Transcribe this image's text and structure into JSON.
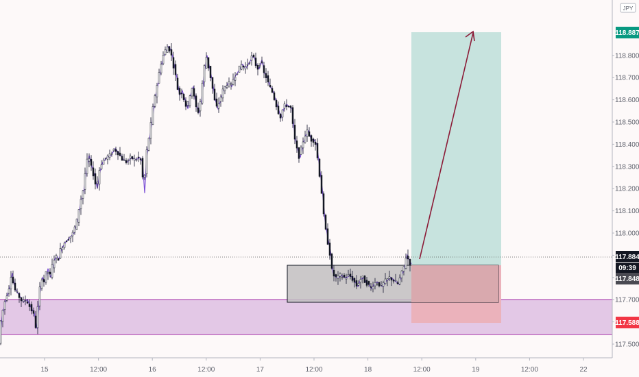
{
  "chart_data": {
    "type": "candlestick",
    "symbol_badge": "JPY",
    "y_axis": {
      "ylim": [
        117.43,
        119.38
      ],
      "ticks": [
        "117.500",
        "117.600",
        "117.700",
        "117.800",
        "117.900",
        "118.000",
        "118.100",
        "118.200",
        "118.300",
        "118.400",
        "118.500",
        "118.600",
        "118.700",
        "118.800"
      ]
    },
    "x_axis": {
      "ticks": [
        "15",
        "12:00",
        "16",
        "12:00",
        "17",
        "12:00",
        "18",
        "12:00",
        "19",
        "12:00",
        "22"
      ]
    },
    "price_tags": {
      "take_profit": "118.887",
      "current_price": "117.884",
      "countdown": "09:39",
      "entry": "117.848",
      "stop_loss": "117.588"
    },
    "colors": {
      "candle_up": "#ffffff",
      "candle_down": "#131722",
      "wick": "#2a2a40",
      "path_line": "#7b4fd6",
      "support_zone": "#e3c8e6",
      "support_border": "#a32ca6",
      "profit_zone": "#c7e3de",
      "loss_zone": "#ebb2bb",
      "consolidation_box": "#bdbdbd",
      "arrow": "#8b1a36",
      "tp_tag": "#089981",
      "sl_tag": "#f23645",
      "dark_tag": "#131722",
      "entry_tag": "#4a4a52"
    },
    "series_path": [
      [
        0,
        117.52
      ],
      [
        3,
        117.62
      ],
      [
        9,
        117.7
      ],
      [
        15,
        117.76
      ],
      [
        18,
        117.82
      ],
      [
        22,
        117.75
      ],
      [
        28,
        117.72
      ],
      [
        34,
        117.69
      ],
      [
        40,
        117.7
      ],
      [
        46,
        117.66
      ],
      [
        50,
        117.64
      ],
      [
        54,
        117.57
      ],
      [
        58,
        117.72
      ],
      [
        62,
        117.8
      ],
      [
        66,
        117.78
      ],
      [
        70,
        117.84
      ],
      [
        74,
        117.8
      ],
      [
        78,
        117.86
      ],
      [
        82,
        117.9
      ],
      [
        86,
        117.88
      ],
      [
        90,
        117.93
      ],
      [
        96,
        117.96
      ],
      [
        102,
        117.98
      ],
      [
        108,
        118.0
      ],
      [
        114,
        118.06
      ],
      [
        118,
        118.14
      ],
      [
        122,
        118.18
      ],
      [
        126,
        118.28
      ],
      [
        130,
        118.35
      ],
      [
        134,
        118.3
      ],
      [
        138,
        118.26
      ],
      [
        142,
        118.2
      ],
      [
        146,
        118.28
      ],
      [
        150,
        118.32
      ],
      [
        156,
        118.34
      ],
      [
        162,
        118.35
      ],
      [
        168,
        118.38
      ],
      [
        174,
        118.36
      ],
      [
        180,
        118.33
      ],
      [
        186,
        118.32
      ],
      [
        192,
        118.34
      ],
      [
        198,
        118.33
      ],
      [
        204,
        118.34
      ],
      [
        208,
        118.32
      ],
      [
        211,
        118.18
      ],
      [
        214,
        118.34
      ],
      [
        218,
        118.42
      ],
      [
        222,
        118.5
      ],
      [
        226,
        118.6
      ],
      [
        230,
        118.66
      ],
      [
        234,
        118.73
      ],
      [
        238,
        118.79
      ],
      [
        242,
        118.82
      ],
      [
        246,
        118.84
      ],
      [
        250,
        118.82
      ],
      [
        254,
        118.76
      ],
      [
        258,
        118.7
      ],
      [
        262,
        118.62
      ],
      [
        266,
        118.64
      ],
      [
        270,
        118.6
      ],
      [
        274,
        118.56
      ],
      [
        278,
        118.62
      ],
      [
        282,
        118.66
      ],
      [
        286,
        118.58
      ],
      [
        290,
        118.54
      ],
      [
        294,
        118.6
      ],
      [
        298,
        118.72
      ],
      [
        302,
        118.8
      ],
      [
        306,
        118.74
      ],
      [
        310,
        118.68
      ],
      [
        314,
        118.6
      ],
      [
        318,
        118.56
      ],
      [
        322,
        118.6
      ],
      [
        326,
        118.64
      ],
      [
        330,
        118.66
      ],
      [
        334,
        118.68
      ],
      [
        338,
        118.66
      ],
      [
        342,
        118.7
      ],
      [
        346,
        118.72
      ],
      [
        350,
        118.74
      ],
      [
        354,
        118.76
      ],
      [
        358,
        118.74
      ],
      [
        362,
        118.76
      ],
      [
        366,
        118.78
      ],
      [
        370,
        118.8
      ],
      [
        374,
        118.76
      ],
      [
        378,
        118.74
      ],
      [
        382,
        118.78
      ],
      [
        386,
        118.72
      ],
      [
        390,
        118.7
      ],
      [
        394,
        118.66
      ],
      [
        398,
        118.64
      ],
      [
        402,
        118.6
      ],
      [
        406,
        118.56
      ],
      [
        410,
        118.52
      ],
      [
        414,
        118.56
      ],
      [
        418,
        118.58
      ],
      [
        422,
        118.57
      ],
      [
        426,
        118.56
      ],
      [
        430,
        118.44
      ],
      [
        434,
        118.38
      ],
      [
        438,
        118.34
      ],
      [
        442,
        118.4
      ],
      [
        446,
        118.44
      ],
      [
        450,
        118.46
      ],
      [
        454,
        118.42
      ],
      [
        458,
        118.42
      ],
      [
        462,
        118.4
      ],
      [
        466,
        118.3
      ],
      [
        470,
        118.2
      ],
      [
        474,
        118.06
      ],
      [
        478,
        117.98
      ],
      [
        482,
        117.92
      ],
      [
        486,
        117.82
      ],
      [
        490,
        117.8
      ],
      [
        494,
        117.8
      ],
      [
        498,
        117.81
      ],
      [
        502,
        117.8
      ],
      [
        506,
        117.8
      ],
      [
        510,
        117.81
      ],
      [
        514,
        117.8
      ],
      [
        518,
        117.78
      ],
      [
        522,
        117.76
      ],
      [
        526,
        117.79
      ],
      [
        530,
        117.8
      ],
      [
        534,
        117.78
      ],
      [
        538,
        117.77
      ],
      [
        542,
        117.75
      ],
      [
        546,
        117.77
      ],
      [
        550,
        117.78
      ],
      [
        554,
        117.77
      ],
      [
        558,
        117.76
      ],
      [
        562,
        117.78
      ],
      [
        566,
        117.79
      ],
      [
        570,
        117.8
      ],
      [
        574,
        117.79
      ],
      [
        578,
        117.78
      ],
      [
        582,
        117.77
      ],
      [
        586,
        117.81
      ],
      [
        590,
        117.84
      ],
      [
        594,
        117.9
      ],
      [
        597,
        117.88
      ],
      [
        600,
        117.86
      ]
    ]
  }
}
